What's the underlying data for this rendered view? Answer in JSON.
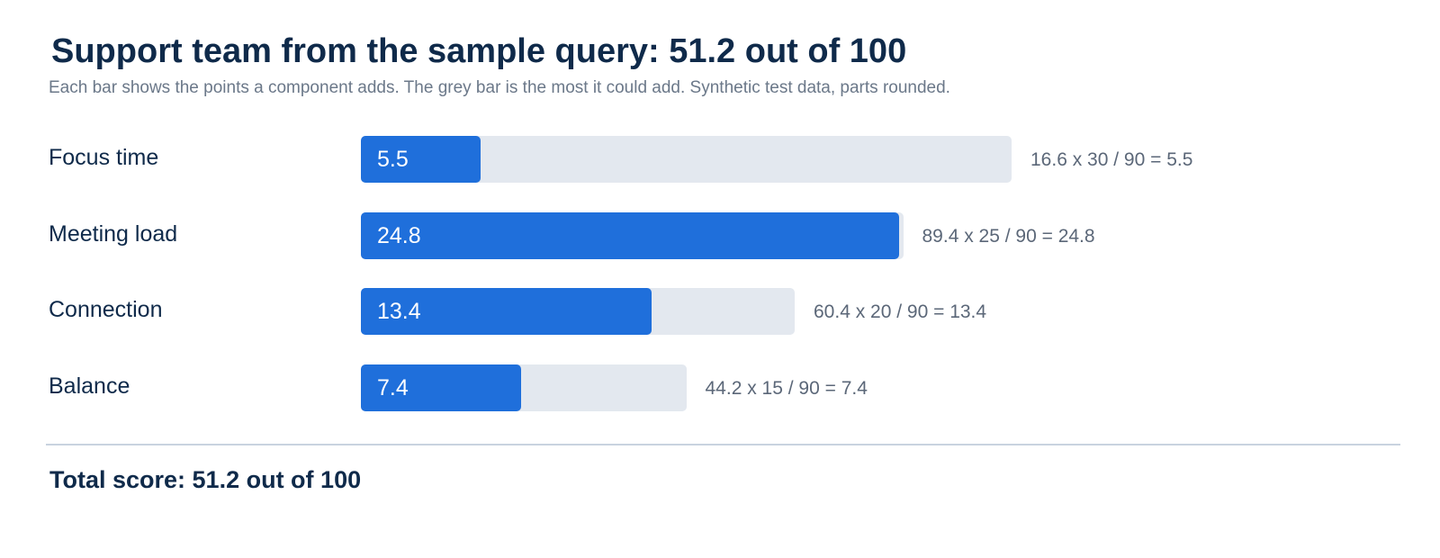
{
  "header": {
    "title": "Support team from the sample query: 51.2 out of 100",
    "subtitle": "Each bar shows the points a component adds. The grey bar is the most it could add. Synthetic test data, parts rounded."
  },
  "chart_data": {
    "type": "bar",
    "orientation": "horizontal",
    "title": "Support team from the sample query: 51.2 out of 100",
    "subtitle": "Each bar shows the points a component adds. The grey bar is the most it could add. Synthetic test data, parts rounded.",
    "categories": [
      "Focus time",
      "Meeting load",
      "Connection",
      "Balance"
    ],
    "values": [
      5.5,
      24.8,
      13.4,
      7.4
    ],
    "max_values": [
      30,
      25,
      20,
      15
    ],
    "value_labels": [
      "5.5",
      "24.8",
      "13.4",
      "7.4"
    ],
    "formulas": [
      "16.6 x 30 / 90 = 5.5",
      "89.4 x 25 / 90 = 24.8",
      "60.4 x 20 / 90 = 13.4",
      "44.2 x 15 / 90 = 7.4"
    ],
    "colors": {
      "bar": "#1f6fdb",
      "track": "#e3e8ef",
      "text": "#0f2a4a",
      "muted": "#5b6778"
    },
    "grid": false,
    "legend": "none"
  },
  "footer": {
    "total": "Total score: 51.2 out of 100"
  }
}
